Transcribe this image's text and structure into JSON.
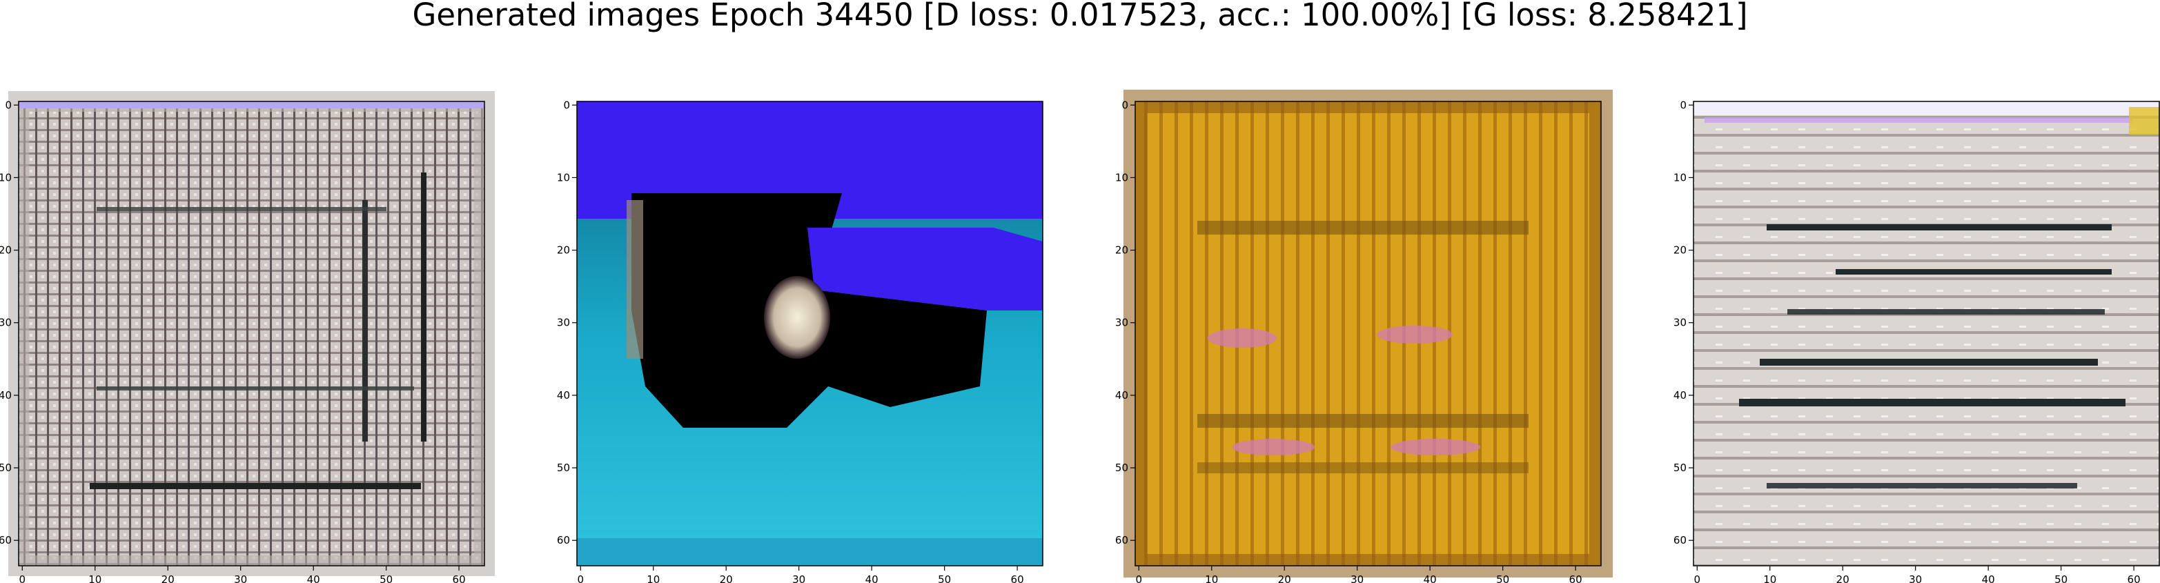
{
  "figure": {
    "title": "Generated images Epoch 34450 [D loss: 0.017523, acc.: 100.00%] [G loss: 8.258421]"
  },
  "panels": [
    {
      "name": "generated-image-1",
      "dominant_colors": [
        "#c7c0bc",
        "#8e8484",
        "#e9e5e5",
        "#2a2e2e"
      ],
      "xticks": [
        "0",
        "10",
        "20",
        "30",
        "40",
        "50",
        "60"
      ],
      "yticks": [
        "0",
        "10",
        "20",
        "30",
        "40",
        "50",
        "60"
      ]
    },
    {
      "name": "generated-image-2",
      "dominant_colors": [
        "#3c1ff0",
        "#1aa9c9",
        "#000000",
        "#0e6b87"
      ],
      "xticks": [
        "0",
        "10",
        "20",
        "30",
        "40",
        "50",
        "60"
      ],
      "yticks": [
        "0",
        "10",
        "20",
        "30",
        "40",
        "50",
        "60"
      ]
    },
    {
      "name": "generated-image-3",
      "dominant_colors": [
        "#d9a21a",
        "#b57b13",
        "#8c5a12",
        "#d27bb6"
      ],
      "xticks": [
        "0",
        "10",
        "20",
        "30",
        "40",
        "50",
        "60"
      ],
      "yticks": [
        "0",
        "10",
        "20",
        "30",
        "40",
        "50",
        "60"
      ]
    },
    {
      "name": "generated-image-4",
      "dominant_colors": [
        "#dcd6d2",
        "#c6bcb7",
        "#202a2a",
        "#f3eef0"
      ],
      "xticks": [
        "0",
        "10",
        "20",
        "30",
        "40",
        "50",
        "60"
      ],
      "yticks": [
        "0",
        "10",
        "20",
        "30",
        "40",
        "50",
        "60"
      ]
    }
  ],
  "axes": {
    "xlim": [
      -0.5,
      63.5
    ],
    "ylim": [
      63.5,
      -0.5
    ]
  }
}
